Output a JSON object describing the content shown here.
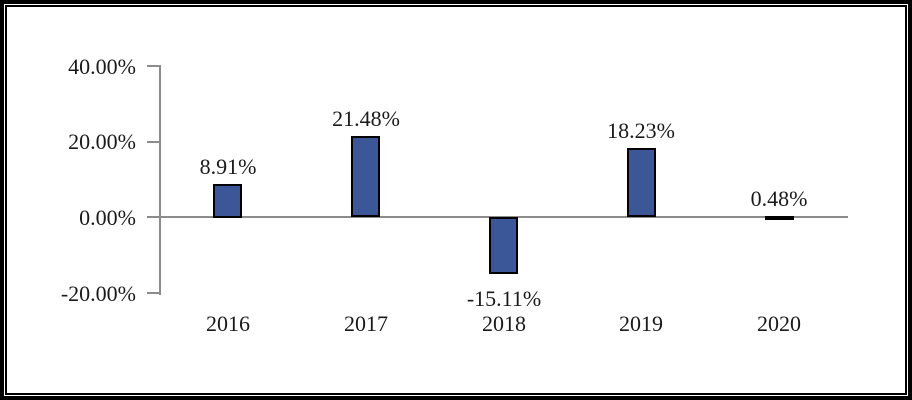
{
  "chart_data": {
    "type": "bar",
    "title": "",
    "xlabel": "",
    "ylabel": "",
    "categories": [
      "2016",
      "2017",
      "2018",
      "2019",
      "2020"
    ],
    "values": [
      8.91,
      21.48,
      -15.11,
      18.23,
      0.48
    ],
    "data_labels": [
      "8.91%",
      "21.48%",
      "-15.11%",
      "18.23%",
      "0.48%"
    ],
    "ylim": [
      -20,
      40
    ],
    "yticks": [
      {
        "value": 40,
        "label": "40.00%"
      },
      {
        "value": 20,
        "label": "20.00%"
      },
      {
        "value": 0,
        "label": "0.00%"
      },
      {
        "value": -20,
        "label": "-20.00%"
      }
    ],
    "grid": false,
    "legend": false,
    "colors": {
      "bar_fill": "#3B5797",
      "bar_border": "#000000",
      "axis": "#8C8C8C",
      "text": "#1A1A1A",
      "frame": "#000000",
      "background": "#FFFFFF"
    }
  }
}
